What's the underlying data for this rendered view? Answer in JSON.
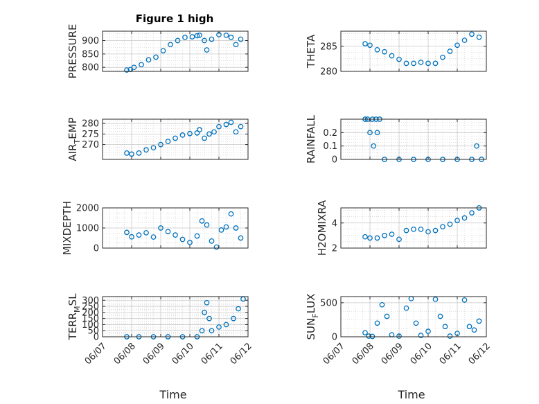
{
  "figure_title": "Figure 1 high",
  "colors": {
    "marker": "#0072BD",
    "axis": "#262626",
    "grid": "#b0b0b0"
  },
  "x_axis": {
    "label": "Time",
    "ticks": [
      "06/07",
      "06/08",
      "06/09",
      "06/10",
      "06/11",
      "06/12"
    ],
    "range": [
      "06/07",
      "06/12"
    ]
  },
  "chart_data": [
    {
      "type": "scatter",
      "ylabel": "PRESSURE",
      "ylim": [
        785,
        935
      ],
      "yticks": [
        800,
        850,
        900
      ],
      "ytick_labels": [
        "800",
        "850",
        "900"
      ],
      "grid": true,
      "x": [
        "06/07 20:00",
        "06/07 23:00",
        "06/08 02:00",
        "06/08 08:00",
        "06/08 14:00",
        "06/08 20:00",
        "06/09 02:00",
        "06/09 08:00",
        "06/09 14:00",
        "06/09 20:00",
        "06/10 02:00",
        "06/10 06:00",
        "06/10 08:00",
        "06/10 12:00",
        "06/10 14:00",
        "06/10 18:00",
        "06/11 00:00",
        "06/11 06:00",
        "06/11 10:00",
        "06/11 14:00",
        "06/11 18:00"
      ],
      "y": [
        790,
        792,
        800,
        810,
        828,
        838,
        862,
        885,
        900,
        912,
        914,
        918,
        920,
        900,
        865,
        905,
        922,
        920,
        912,
        885,
        905
      ]
    },
    {
      "type": "scatter",
      "ylabel": "THETA",
      "ylim": [
        280,
        288
      ],
      "yticks": [
        280,
        285
      ],
      "ytick_labels": [
        "280",
        "285"
      ],
      "grid": true,
      "x": [
        "06/07 20:00",
        "06/08 00:00",
        "06/08 06:00",
        "06/08 12:00",
        "06/08 18:00",
        "06/09 00:00",
        "06/09 06:00",
        "06/09 12:00",
        "06/09 18:00",
        "06/10 00:00",
        "06/10 06:00",
        "06/10 12:00",
        "06/10 18:00",
        "06/11 00:00",
        "06/11 06:00",
        "06/11 12:00",
        "06/11 18:00"
      ],
      "y": [
        285.5,
        285.2,
        284.3,
        283.9,
        283.1,
        282.4,
        281.6,
        281.6,
        281.8,
        281.6,
        281.6,
        282.8,
        284.0,
        285.2,
        286.2,
        287.4,
        286.8
      ]
    },
    {
      "type": "scatter",
      "ylabel": "AIR_TEMP",
      "ylim": [
        263,
        282
      ],
      "yticks": [
        270,
        275,
        280
      ],
      "ytick_labels": [
        "270",
        "275",
        "280"
      ],
      "grid": true,
      "x": [
        "06/07 20:00",
        "06/08 00:00",
        "06/08 06:00",
        "06/08 12:00",
        "06/08 18:00",
        "06/09 00:00",
        "06/09 06:00",
        "06/09 12:00",
        "06/09 18:00",
        "06/10 00:00",
        "06/10 06:00",
        "06/10 08:00",
        "06/10 12:00",
        "06/10 16:00",
        "06/10 20:00",
        "06/11 00:00",
        "06/11 06:00",
        "06/11 10:00",
        "06/11 14:00",
        "06/11 18:00"
      ],
      "y": [
        266,
        265.5,
        266,
        267.5,
        268.5,
        270,
        271.5,
        273,
        274.5,
        275.2,
        275.5,
        277,
        273,
        275,
        276,
        278.5,
        279.5,
        280.5,
        276,
        278.5
      ]
    },
    {
      "type": "scatter",
      "ylabel": "RAINFALL",
      "ylim": [
        0,
        0.3
      ],
      "yticks": [
        0,
        0.1,
        0.2
      ],
      "ytick_labels": [
        "0",
        "0.1",
        "0.2"
      ],
      "grid": true,
      "x": [
        "06/07 20:00",
        "06/07 22:00",
        "06/08 00:00",
        "06/08 02:00",
        "06/08 03:00",
        "06/08 05:00",
        "06/08 08:00",
        "06/08 06:00",
        "06/08 12:00",
        "06/09 00:00",
        "06/09 12:00",
        "06/10 00:00",
        "06/10 12:00",
        "06/11 00:00",
        "06/11 12:00",
        "06/11 16:00",
        "06/11 20:00"
      ],
      "y": [
        0.3,
        0.3,
        0.2,
        0.3,
        0.1,
        0.3,
        0.3,
        0.2,
        0,
        0,
        0,
        0,
        0,
        0,
        0,
        0.1,
        0
      ]
    },
    {
      "type": "scatter",
      "ylabel": "MIXDEPTH",
      "ylim": [
        0,
        2000
      ],
      "yticks": [
        0,
        1000,
        2000
      ],
      "ytick_labels": [
        "0",
        "1000",
        "2000"
      ],
      "grid": true,
      "x": [
        "06/07 20:00",
        "06/08 00:00",
        "06/08 06:00",
        "06/08 12:00",
        "06/08 18:00",
        "06/09 00:00",
        "06/09 06:00",
        "06/09 12:00",
        "06/09 18:00",
        "06/10 00:00",
        "06/10 06:00",
        "06/10 10:00",
        "06/10 14:00",
        "06/10 18:00",
        "06/10 22:00",
        "06/11 02:00",
        "06/11 06:00",
        "06/11 10:00",
        "06/11 14:00",
        "06/11 18:00"
      ],
      "y": [
        780,
        560,
        650,
        760,
        550,
        1000,
        820,
        650,
        430,
        280,
        600,
        1350,
        1150,
        350,
        50,
        900,
        1050,
        1700,
        1000,
        500
      ]
    },
    {
      "type": "scatter",
      "ylabel": "H2OMIXRA",
      "ylim": [
        2,
        5.2
      ],
      "yticks": [
        2,
        4
      ],
      "ytick_labels": [
        "2",
        "4"
      ],
      "grid": true,
      "x": [
        "06/07 20:00",
        "06/08 00:00",
        "06/08 06:00",
        "06/08 12:00",
        "06/08 18:00",
        "06/09 00:00",
        "06/09 06:00",
        "06/09 12:00",
        "06/09 18:00",
        "06/10 00:00",
        "06/10 06:00",
        "06/10 12:00",
        "06/10 18:00",
        "06/11 00:00",
        "06/11 06:00",
        "06/11 12:00",
        "06/11 18:00"
      ],
      "y": [
        2.9,
        2.8,
        2.8,
        3.0,
        3.1,
        2.7,
        3.4,
        3.5,
        3.5,
        3.3,
        3.4,
        3.7,
        3.9,
        4.2,
        4.4,
        4.8,
        5.2
      ]
    },
    {
      "type": "scatter",
      "ylabel": "TERR_MSL",
      "ylim": [
        0,
        330
      ],
      "yticks": [
        0,
        50,
        100,
        150,
        200,
        250,
        300
      ],
      "ytick_labels": [
        "0",
        "50",
        "100",
        "150",
        "200",
        "250",
        "300"
      ],
      "grid": true,
      "x": [
        "06/07 20:00",
        "06/08 06:00",
        "06/08 18:00",
        "06/09 06:00",
        "06/09 18:00",
        "06/10 06:00",
        "06/10 10:00",
        "06/10 12:00",
        "06/10 14:00",
        "06/10 16:00",
        "06/10 18:00",
        "06/11 00:00",
        "06/11 06:00",
        "06/11 12:00",
        "06/11 16:00",
        "06/11 20:00"
      ],
      "y": [
        0,
        0,
        0,
        0,
        0,
        0,
        50,
        200,
        280,
        150,
        50,
        80,
        100,
        150,
        230,
        310
      ]
    },
    {
      "type": "scatter",
      "ylabel": "SUN_FLUX",
      "ylim": [
        0,
        590
      ],
      "yticks": [
        0,
        500
      ],
      "ytick_labels": [
        "0",
        "500"
      ],
      "grid": true,
      "x": [
        "06/07 20:00",
        "06/07 23:00",
        "06/08 02:00",
        "06/08 06:00",
        "06/08 10:00",
        "06/08 14:00",
        "06/08 18:00",
        "06/09 00:00",
        "06/09 06:00",
        "06/09 10:00",
        "06/09 14:00",
        "06/09 18:00",
        "06/10 00:00",
        "06/10 06:00",
        "06/10 10:00",
        "06/10 14:00",
        "06/10 18:00",
        "06/11 00:00",
        "06/11 06:00",
        "06/11 10:00",
        "06/11 14:00",
        "06/11 18:00"
      ],
      "y": [
        60,
        10,
        5,
        200,
        470,
        300,
        30,
        10,
        420,
        560,
        200,
        20,
        80,
        550,
        300,
        150,
        10,
        50,
        540,
        150,
        100,
        230
      ]
    }
  ]
}
